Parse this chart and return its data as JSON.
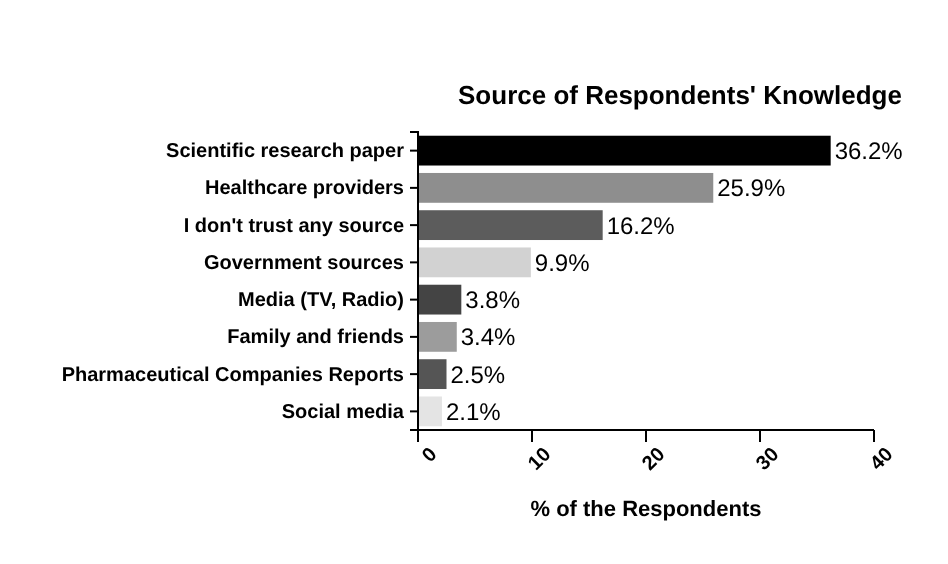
{
  "chart_data": {
    "type": "bar",
    "orientation": "horizontal",
    "title": "Source of Respondents' Knowledge",
    "xlabel": "% of the Respondents",
    "categories": [
      "Scientific research paper",
      "Healthcare providers",
      "I don't trust any source",
      "Government sources",
      "Media (TV, Radio)",
      "Family and friends",
      "Pharmaceutical Companies Reports",
      "Social media"
    ],
    "values": [
      36.2,
      25.9,
      16.2,
      9.9,
      3.8,
      3.4,
      2.5,
      2.1
    ],
    "colors": [
      "#000000",
      "#8e8e8e",
      "#5c5c5c",
      "#d2d2d2",
      "#444444",
      "#9c9c9c",
      "#555555",
      "#e4e4e4"
    ],
    "value_labels": [
      "36.2%",
      "25.9%",
      "16.2%",
      "9.9%",
      "3.8%",
      "3.4%",
      "2.5%",
      "2.1%"
    ],
    "xlim": [
      0,
      40
    ],
    "xticks": [
      0,
      10,
      20,
      30,
      40
    ],
    "grid": false
  }
}
